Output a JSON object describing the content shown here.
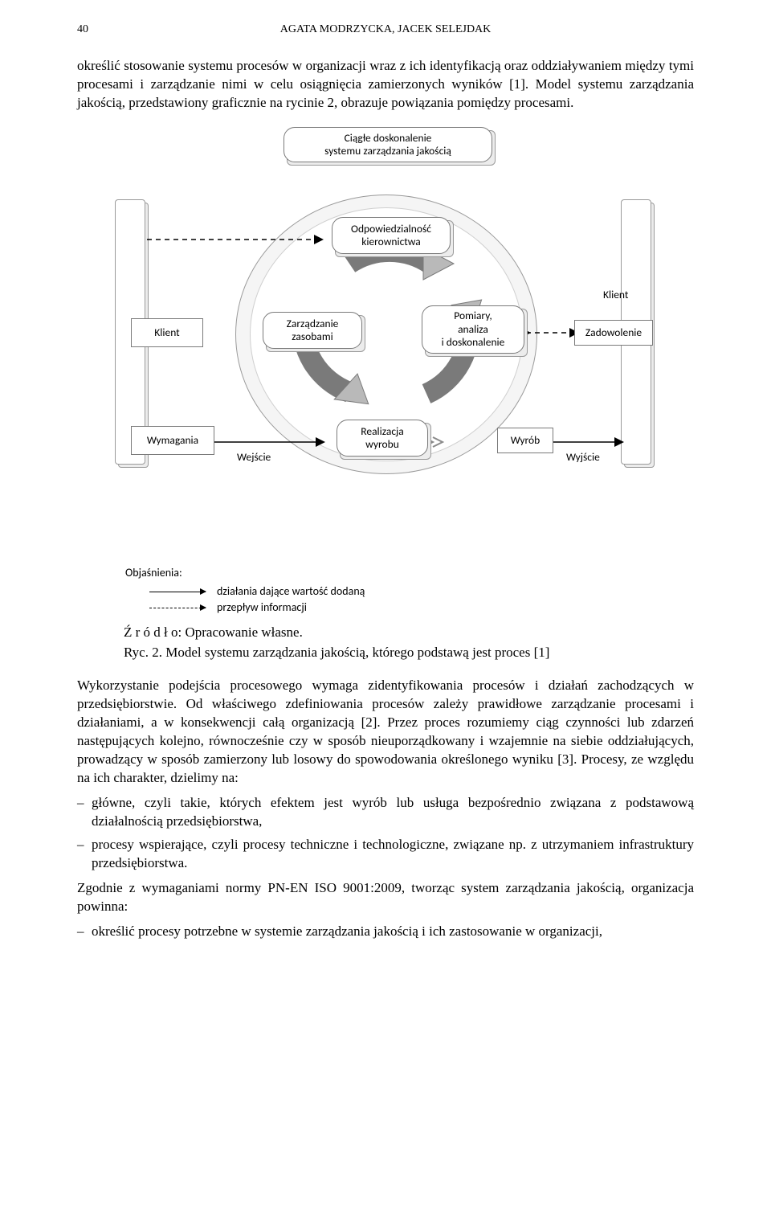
{
  "header": {
    "page_num": "40",
    "authors": "AGATA MODRZYCKA, JACEK SELEJDAK"
  },
  "para1": "określić stosowanie systemu procesów w organizacji wraz z ich identyfikacją oraz oddziaływaniem między tymi procesami i zarządzanie nimi w celu osiągnięcia zamierzonych wyników [1]. Model systemu zarządzania jakością, przedstawiony graficznie na rycinie 2, obrazuje powiązania pomiędzy procesami.",
  "diagram": {
    "top_node": "Ciągłe doskonalenie\nsystemu zarządzania jakością",
    "odp": "Odpowiedzialność\nkierownictwa",
    "klient_left": "Klient",
    "klient_right": "Klient",
    "zarz": "Zarządzanie\nzasobami",
    "pomiary": "Pomiary,\nanaliza\ni doskonalenie",
    "zadow": "Zadowolenie",
    "wymagania": "Wymagania",
    "wejscie": "Wejście",
    "realizacja": "Realizacja\nwyrobu",
    "wyrob": "Wyrób",
    "wyjscie": "Wyjście"
  },
  "legend": {
    "title": "Objaśnienia:",
    "solid": "działania dające wartość dodaną",
    "dashed": "przepływ informacji"
  },
  "source": "Ź r ó d ł o: Opracowanie własne.",
  "caption": "Ryc. 2. Model systemu zarządzania jakością, którego podstawą jest proces [1]",
  "para2": "Wykorzystanie podejścia procesowego wymaga zidentyfikowania procesów i działań zachodzących w przedsiębiorstwie. Od właściwego zdefiniowania procesów zależy prawidłowe zarządzanie procesami i działaniami, a w konsekwencji całą organizacją [2]. Przez proces rozumiemy ciąg czynności lub zdarzeń następujących kolejno, równocześnie czy w sposób nieuporządkowany i wzajemnie na siebie oddziałujących, prowadzący w sposób zamierzony lub losowy do spowodowania określonego wyniku [3]. Procesy, ze względu na ich charakter, dzielimy na:",
  "list1": {
    "a": "główne, czyli takie, których efektem jest wyrób lub usługa bezpośrednio związana z podstawową działalnością przedsiębiorstwa,",
    "b": "procesy wspierające, czyli procesy techniczne i technologiczne, związane np. z utrzymaniem infrastruktury przedsiębiorstwa."
  },
  "para3": "Zgodnie z wymaganiami normy PN-EN ISO 9001:2009, tworząc system zarządzania jakością, organizacja powinna:",
  "list2": {
    "a": "określić procesy potrzebne w systemie zarządzania jakością i ich zastosowanie w organizacji,"
  },
  "colors": {
    "node_bg": "#ffffff",
    "shadow_bg": "#ececec",
    "ring_bg": "#f5f5f5",
    "arrow_fill": "#b9b9b9",
    "arrow_stroke": "#7a7a7a"
  }
}
